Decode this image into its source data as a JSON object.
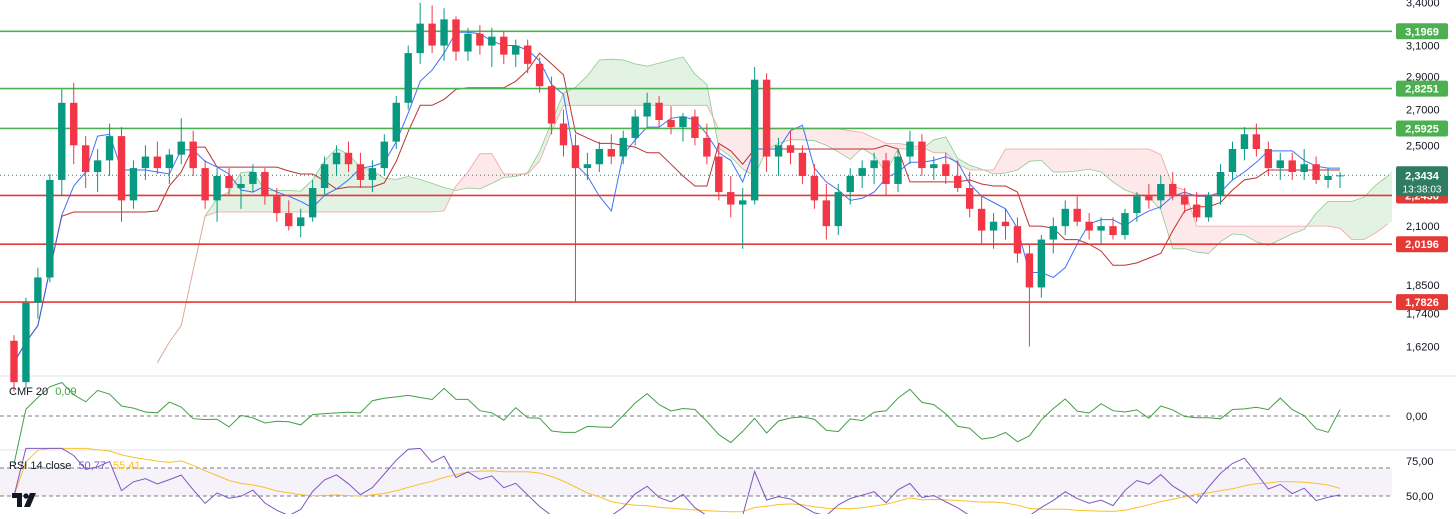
{
  "colors": {
    "up": "#089981",
    "down": "#f23645",
    "level_green": "#4caf50",
    "level_red": "#e53935",
    "tenkan": "#2962ff",
    "kijun": "#b71c1c",
    "cloud_green": "#a5d6a7",
    "cloud_red": "#f8bbbb",
    "cmf": "#43a047",
    "rsi": "#7e57c2",
    "rsi_ma": "#fbc02d",
    "price_tag": "#2e7d63"
  },
  "price_axis": {
    "ticks": [
      "3,4000",
      "3,1000",
      "2,9000",
      "2,7000",
      "2,5000",
      "2,1000",
      "1,8500",
      "1,7400",
      "1,6200"
    ],
    "scale": "log",
    "ylim": [
      1.52,
      3.42
    ]
  },
  "levels": [
    {
      "label": "3,1969",
      "value": 3.1969,
      "kind": "resistance"
    },
    {
      "label": "2,8251",
      "value": 2.8251,
      "kind": "resistance"
    },
    {
      "label": "2,5925",
      "value": 2.5925,
      "kind": "resistance"
    },
    {
      "label": "2,2436",
      "value": 2.2436,
      "kind": "support"
    },
    {
      "label": "2,0196",
      "value": 2.0196,
      "kind": "support"
    },
    {
      "label": "1,7826",
      "value": 1.7826,
      "kind": "support"
    }
  ],
  "last_price": {
    "label": "2,3434",
    "countdown": "13:38:03",
    "value": 2.3434
  },
  "cmf": {
    "label": "CMF 20",
    "value": "0,09",
    "zero_tick": "0,00"
  },
  "rsi": {
    "label": "RSI 14 close",
    "value": "50,77",
    "ma_value": "55,41",
    "ticks": [
      "75,00",
      "50,00"
    ],
    "upper": 70,
    "lower": 50
  },
  "chart_data": {
    "type": "candlestick",
    "title": "",
    "xlabel": "",
    "ylabel": "",
    "ylim": [
      1.52,
      3.42
    ],
    "grid": false,
    "ohlc": [
      [
        1.64,
        1.66,
        1.47,
        1.5
      ],
      [
        1.5,
        1.8,
        1.48,
        1.78
      ],
      [
        1.78,
        1.92,
        1.72,
        1.88
      ],
      [
        1.88,
        2.35,
        1.86,
        2.32
      ],
      [
        2.32,
        2.82,
        2.24,
        2.74
      ],
      [
        2.74,
        2.86,
        2.4,
        2.5
      ],
      [
        2.5,
        2.55,
        2.28,
        2.36
      ],
      [
        2.36,
        2.48,
        2.26,
        2.42
      ],
      [
        2.42,
        2.62,
        2.34,
        2.55
      ],
      [
        2.55,
        2.6,
        2.12,
        2.22
      ],
      [
        2.22,
        2.42,
        2.18,
        2.38
      ],
      [
        2.38,
        2.5,
        2.32,
        2.44
      ],
      [
        2.44,
        2.52,
        2.35,
        2.38
      ],
      [
        2.38,
        2.48,
        2.3,
        2.45
      ],
      [
        2.45,
        2.65,
        2.4,
        2.52
      ],
      [
        2.52,
        2.58,
        2.34,
        2.38
      ],
      [
        2.38,
        2.42,
        2.18,
        2.22
      ],
      [
        2.22,
        2.38,
        2.12,
        2.34
      ],
      [
        2.34,
        2.38,
        2.24,
        2.28
      ],
      [
        2.28,
        2.34,
        2.18,
        2.3
      ],
      [
        2.3,
        2.4,
        2.26,
        2.36
      ],
      [
        2.36,
        2.38,
        2.2,
        2.24
      ],
      [
        2.24,
        2.28,
        2.12,
        2.16
      ],
      [
        2.16,
        2.22,
        2.08,
        2.1
      ],
      [
        2.1,
        2.18,
        2.05,
        2.14
      ],
      [
        2.14,
        2.32,
        2.12,
        2.28
      ],
      [
        2.28,
        2.44,
        2.24,
        2.4
      ],
      [
        2.4,
        2.5,
        2.34,
        2.46
      ],
      [
        2.46,
        2.52,
        2.36,
        2.4
      ],
      [
        2.4,
        2.46,
        2.28,
        2.32
      ],
      [
        2.32,
        2.42,
        2.26,
        2.38
      ],
      [
        2.38,
        2.56,
        2.34,
        2.52
      ],
      [
        2.52,
        2.78,
        2.48,
        2.74
      ],
      [
        2.74,
        3.1,
        2.7,
        3.05
      ],
      [
        3.05,
        3.4,
        2.98,
        3.25
      ],
      [
        3.25,
        3.38,
        3.05,
        3.1
      ],
      [
        3.1,
        3.36,
        3.0,
        3.28
      ],
      [
        3.28,
        3.3,
        3.0,
        3.06
      ],
      [
        3.06,
        3.22,
        3.0,
        3.18
      ],
      [
        3.18,
        3.24,
        3.04,
        3.1
      ],
      [
        3.1,
        3.22,
        2.96,
        3.16
      ],
      [
        3.16,
        3.2,
        2.98,
        3.04
      ],
      [
        3.04,
        3.14,
        2.96,
        3.1
      ],
      [
        3.1,
        3.14,
        2.92,
        2.98
      ],
      [
        2.98,
        3.02,
        2.8,
        2.84
      ],
      [
        2.84,
        2.9,
        2.56,
        2.62
      ],
      [
        2.62,
        2.7,
        2.44,
        2.5
      ],
      [
        2.5,
        2.56,
        1.78,
        2.38
      ],
      [
        2.38,
        2.46,
        2.32,
        2.4
      ],
      [
        2.4,
        2.52,
        2.36,
        2.48
      ],
      [
        2.48,
        2.56,
        2.4,
        2.44
      ],
      [
        2.44,
        2.58,
        2.4,
        2.54
      ],
      [
        2.54,
        2.7,
        2.5,
        2.66
      ],
      [
        2.66,
        2.8,
        2.6,
        2.74
      ],
      [
        2.74,
        2.78,
        2.6,
        2.64
      ],
      [
        2.64,
        2.72,
        2.56,
        2.6
      ],
      [
        2.6,
        2.68,
        2.52,
        2.66
      ],
      [
        2.66,
        2.7,
        2.5,
        2.54
      ],
      [
        2.54,
        2.62,
        2.4,
        2.44
      ],
      [
        2.44,
        2.5,
        2.22,
        2.26
      ],
      [
        2.26,
        2.34,
        2.14,
        2.2
      ],
      [
        2.2,
        2.28,
        2.0,
        2.22
      ],
      [
        2.22,
        2.96,
        2.2,
        2.88
      ],
      [
        2.88,
        2.92,
        2.36,
        2.44
      ],
      [
        2.44,
        2.54,
        2.34,
        2.5
      ],
      [
        2.5,
        2.58,
        2.4,
        2.46
      ],
      [
        2.46,
        2.5,
        2.3,
        2.34
      ],
      [
        2.34,
        2.4,
        2.18,
        2.22
      ],
      [
        2.22,
        2.3,
        2.04,
        2.1
      ],
      [
        2.1,
        2.3,
        2.06,
        2.26
      ],
      [
        2.26,
        2.38,
        2.2,
        2.34
      ],
      [
        2.34,
        2.42,
        2.28,
        2.38
      ],
      [
        2.38,
        2.46,
        2.3,
        2.42
      ],
      [
        2.42,
        2.46,
        2.24,
        2.3
      ],
      [
        2.3,
        2.48,
        2.26,
        2.44
      ],
      [
        2.44,
        2.58,
        2.4,
        2.52
      ],
      [
        2.52,
        2.56,
        2.34,
        2.38
      ],
      [
        2.38,
        2.44,
        2.32,
        2.4
      ],
      [
        2.4,
        2.46,
        2.3,
        2.34
      ],
      [
        2.34,
        2.42,
        2.26,
        2.28
      ],
      [
        2.28,
        2.36,
        2.14,
        2.18
      ],
      [
        2.18,
        2.24,
        2.02,
        2.08
      ],
      [
        2.08,
        2.16,
        2.0,
        2.12
      ],
      [
        2.12,
        2.18,
        2.04,
        2.1
      ],
      [
        2.1,
        2.14,
        1.94,
        1.98
      ],
      [
        1.98,
        2.02,
        1.62,
        1.84
      ],
      [
        1.84,
        2.06,
        1.8,
        2.04
      ],
      [
        2.04,
        2.14,
        1.98,
        2.1
      ],
      [
        2.1,
        2.22,
        2.06,
        2.18
      ],
      [
        2.18,
        2.24,
        2.1,
        2.12
      ],
      [
        2.12,
        2.16,
        2.04,
        2.08
      ],
      [
        2.08,
        2.14,
        2.02,
        2.1
      ],
      [
        2.1,
        2.14,
        2.04,
        2.06
      ],
      [
        2.06,
        2.18,
        2.04,
        2.16
      ],
      [
        2.16,
        2.26,
        2.12,
        2.24
      ],
      [
        2.24,
        2.3,
        2.18,
        2.22
      ],
      [
        2.22,
        2.34,
        2.18,
        2.3
      ],
      [
        2.3,
        2.36,
        2.22,
        2.24
      ],
      [
        2.24,
        2.28,
        2.16,
        2.2
      ],
      [
        2.2,
        2.26,
        2.12,
        2.14
      ],
      [
        2.14,
        2.26,
        2.12,
        2.24
      ],
      [
        2.24,
        2.4,
        2.2,
        2.36
      ],
      [
        2.36,
        2.52,
        2.32,
        2.48
      ],
      [
        2.48,
        2.6,
        2.42,
        2.56
      ],
      [
        2.56,
        2.62,
        2.44,
        2.48
      ],
      [
        2.48,
        2.52,
        2.34,
        2.38
      ],
      [
        2.38,
        2.46,
        2.32,
        2.42
      ],
      [
        2.42,
        2.46,
        2.32,
        2.36
      ],
      [
        2.36,
        2.48,
        2.32,
        2.4
      ],
      [
        2.4,
        2.44,
        2.3,
        2.32
      ],
      [
        2.32,
        2.38,
        2.28,
        2.34
      ],
      [
        2.34,
        2.36,
        2.28,
        2.343
      ]
    ]
  }
}
